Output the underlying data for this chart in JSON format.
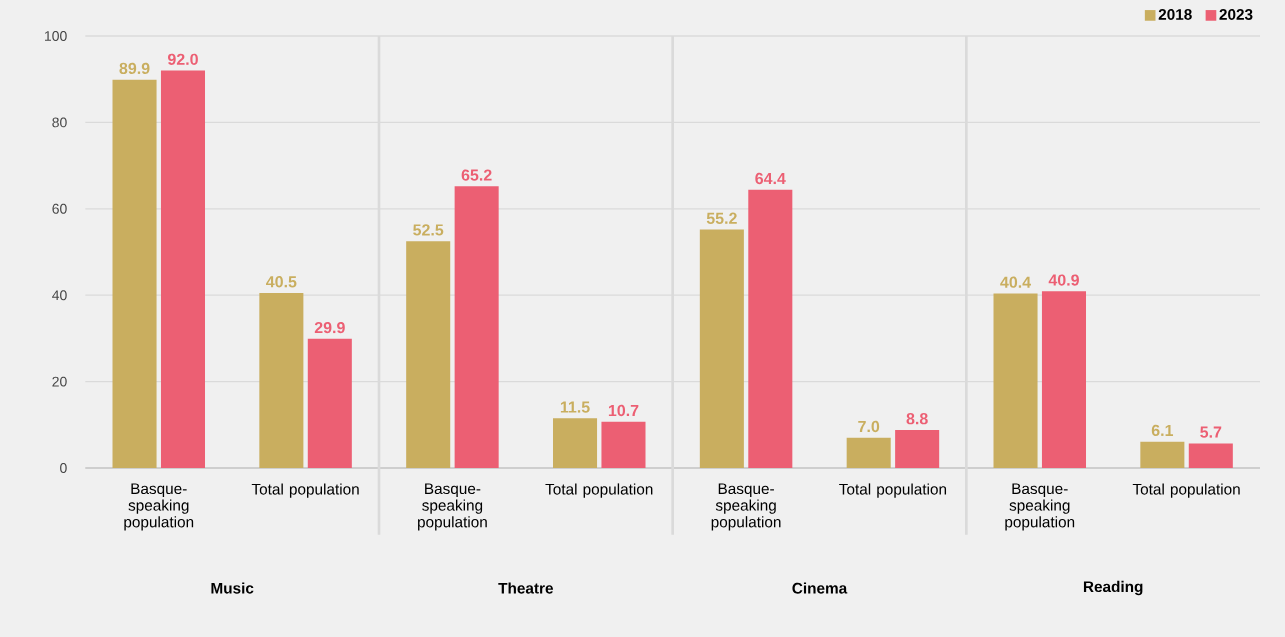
{
  "chart_data": {
    "type": "bar",
    "categories": [
      "Basque-speaking population",
      "Total population",
      "Basque-speaking population",
      "Total population",
      "Basque-speaking population",
      "Total population",
      "Basque-speaking population",
      "Total population"
    ],
    "series": [
      {
        "name": "2018",
        "color": "#c9ae5f",
        "values": [
          89.9,
          40.5,
          52.5,
          11.5,
          55.2,
          7.0,
          40.4,
          6.1
        ],
        "value_labels": [
          "89.9",
          "40.5",
          "52.5",
          "11.5",
          "55.2",
          "7.0",
          "40.4",
          "6.1"
        ]
      },
      {
        "name": "2023",
        "color": "#ec5f73",
        "values": [
          92.0,
          29.9,
          65.2,
          10.7,
          64.4,
          8.8,
          40.9,
          5.7
        ],
        "value_labels": [
          "92.0",
          "29.9",
          "65.2",
          "10.7",
          "64.4",
          "8.8",
          "40.9",
          "5.7"
        ]
      }
    ],
    "annotations": [
      "Music",
      "Theatre",
      "Cinema",
      "Reading"
    ],
    "ylim": [
      0,
      100
    ],
    "yticks": [
      0,
      20,
      40,
      60,
      80,
      100
    ],
    "grid": "y",
    "legend": "top right"
  }
}
